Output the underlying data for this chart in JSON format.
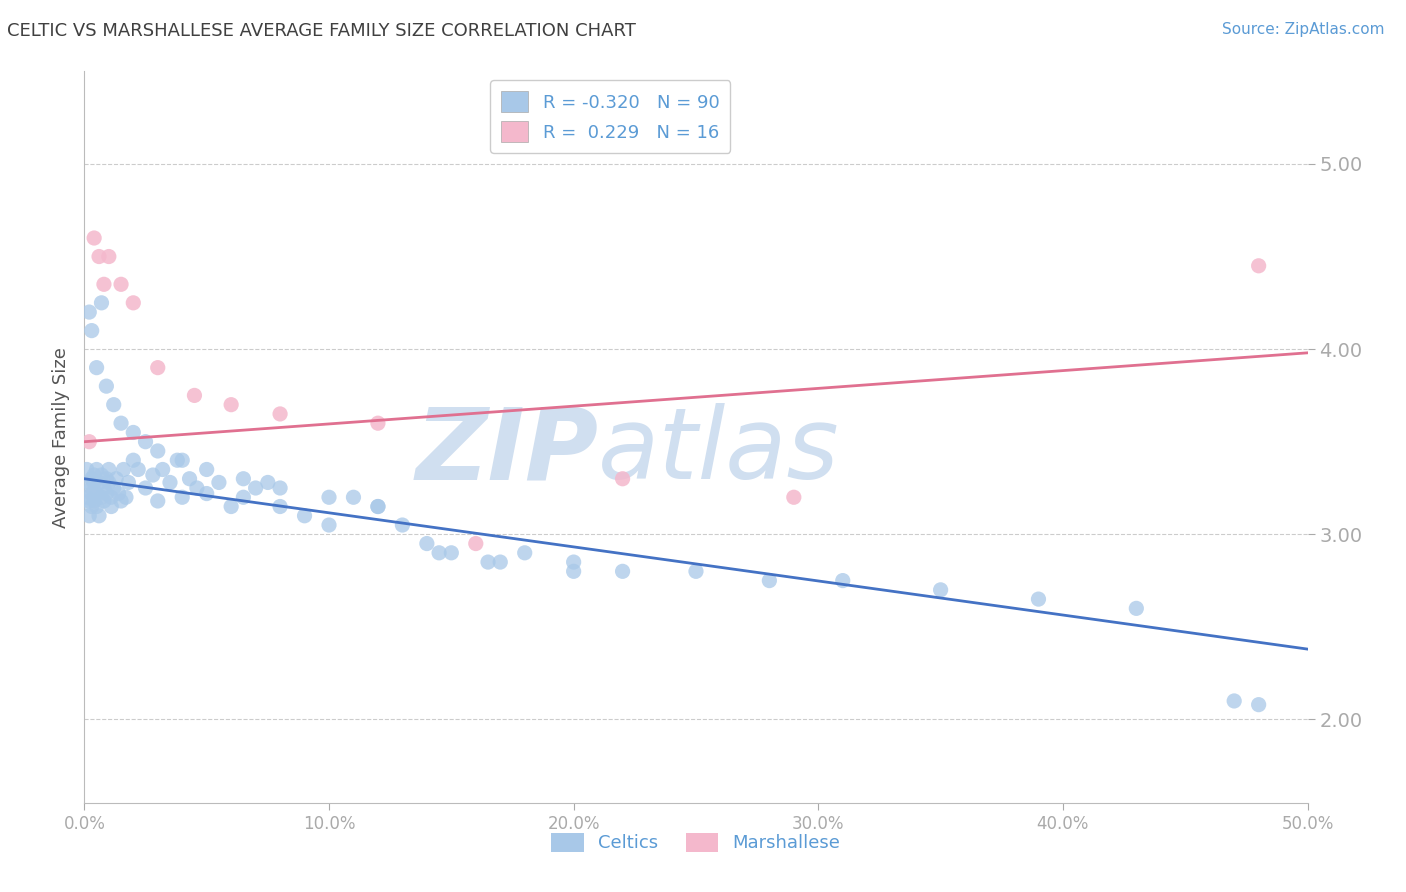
{
  "title": "CELTIC VS MARSHALLESE AVERAGE FAMILY SIZE CORRELATION CHART",
  "source_text": "Source: ZipAtlas.com",
  "ylabel": "Average Family Size",
  "xlim": [
    0,
    0.5
  ],
  "ylim": [
    1.55,
    5.5
  ],
  "yticks": [
    2.0,
    3.0,
    4.0,
    5.0
  ],
  "xticks": [
    0.0,
    0.1,
    0.2,
    0.3,
    0.4,
    0.5
  ],
  "xticklabels": [
    "0.0%",
    "10.0%",
    "20.0%",
    "30.0%",
    "40.0%",
    "50.0%"
  ],
  "yticklabels": [
    "2.00",
    "3.00",
    "4.00",
    "5.00"
  ],
  "celtic_color": "#a8c8e8",
  "marshallese_color": "#f4b8cc",
  "celtic_line_color": "#4472c4",
  "marshallese_line_color": "#e07090",
  "celtic_R": -0.32,
  "celtic_N": 90,
  "marshallese_R": 0.229,
  "marshallese_N": 16,
  "celtic_trend_x": [
    0.0,
    0.5
  ],
  "celtic_trend_y": [
    3.3,
    2.38
  ],
  "marshallese_trend_x": [
    0.0,
    0.5
  ],
  "marshallese_trend_y": [
    3.5,
    3.98
  ],
  "celtic_x": [
    0.001,
    0.001,
    0.002,
    0.002,
    0.002,
    0.003,
    0.003,
    0.003,
    0.003,
    0.004,
    0.004,
    0.004,
    0.005,
    0.005,
    0.005,
    0.006,
    0.006,
    0.007,
    0.007,
    0.008,
    0.008,
    0.009,
    0.009,
    0.01,
    0.01,
    0.011,
    0.011,
    0.012,
    0.013,
    0.014,
    0.015,
    0.016,
    0.017,
    0.018,
    0.02,
    0.022,
    0.025,
    0.028,
    0.03,
    0.032,
    0.035,
    0.038,
    0.04,
    0.043,
    0.046,
    0.05,
    0.055,
    0.06,
    0.065,
    0.07,
    0.075,
    0.08,
    0.09,
    0.1,
    0.11,
    0.12,
    0.13,
    0.14,
    0.15,
    0.165,
    0.18,
    0.2,
    0.22,
    0.25,
    0.28,
    0.31,
    0.35,
    0.39,
    0.43,
    0.47,
    0.002,
    0.003,
    0.005,
    0.007,
    0.009,
    0.012,
    0.015,
    0.02,
    0.025,
    0.03,
    0.04,
    0.05,
    0.065,
    0.08,
    0.1,
    0.12,
    0.145,
    0.17,
    0.2,
    0.48
  ],
  "celtic_y": [
    3.2,
    3.35,
    3.18,
    3.28,
    3.1,
    3.22,
    3.3,
    3.15,
    3.25,
    3.32,
    3.18,
    3.28,
    3.15,
    3.22,
    3.35,
    3.1,
    3.28,
    3.2,
    3.32,
    3.25,
    3.18,
    3.3,
    3.22,
    3.28,
    3.35,
    3.2,
    3.15,
    3.25,
    3.3,
    3.22,
    3.18,
    3.35,
    3.2,
    3.28,
    3.4,
    3.35,
    3.25,
    3.32,
    3.18,
    3.35,
    3.28,
    3.4,
    3.2,
    3.3,
    3.25,
    3.22,
    3.28,
    3.15,
    3.2,
    3.25,
    3.28,
    3.15,
    3.1,
    3.05,
    3.2,
    3.15,
    3.05,
    2.95,
    2.9,
    2.85,
    2.9,
    2.85,
    2.8,
    2.8,
    2.75,
    2.75,
    2.7,
    2.65,
    2.6,
    2.1,
    4.2,
    4.1,
    3.9,
    4.25,
    3.8,
    3.7,
    3.6,
    3.55,
    3.5,
    3.45,
    3.4,
    3.35,
    3.3,
    3.25,
    3.2,
    3.15,
    2.9,
    2.85,
    2.8,
    2.08
  ],
  "marshallese_x": [
    0.002,
    0.004,
    0.006,
    0.008,
    0.01,
    0.015,
    0.02,
    0.03,
    0.045,
    0.06,
    0.08,
    0.12,
    0.16,
    0.22,
    0.29,
    0.48
  ],
  "marshallese_y": [
    3.5,
    4.6,
    4.5,
    4.35,
    4.5,
    4.35,
    4.25,
    3.9,
    3.75,
    3.7,
    3.65,
    3.6,
    2.95,
    3.3,
    3.2,
    4.45
  ],
  "background_color": "#ffffff",
  "grid_color": "#cccccc",
  "title_color": "#404040",
  "axis_label_color": "#5b9bd5",
  "legend_R_color": "#5b9bd5",
  "legend_N_color": "#333333",
  "watermark_zip": "ZIP",
  "watermark_atlas": "atlas",
  "watermark_color": "#d0dff0"
}
